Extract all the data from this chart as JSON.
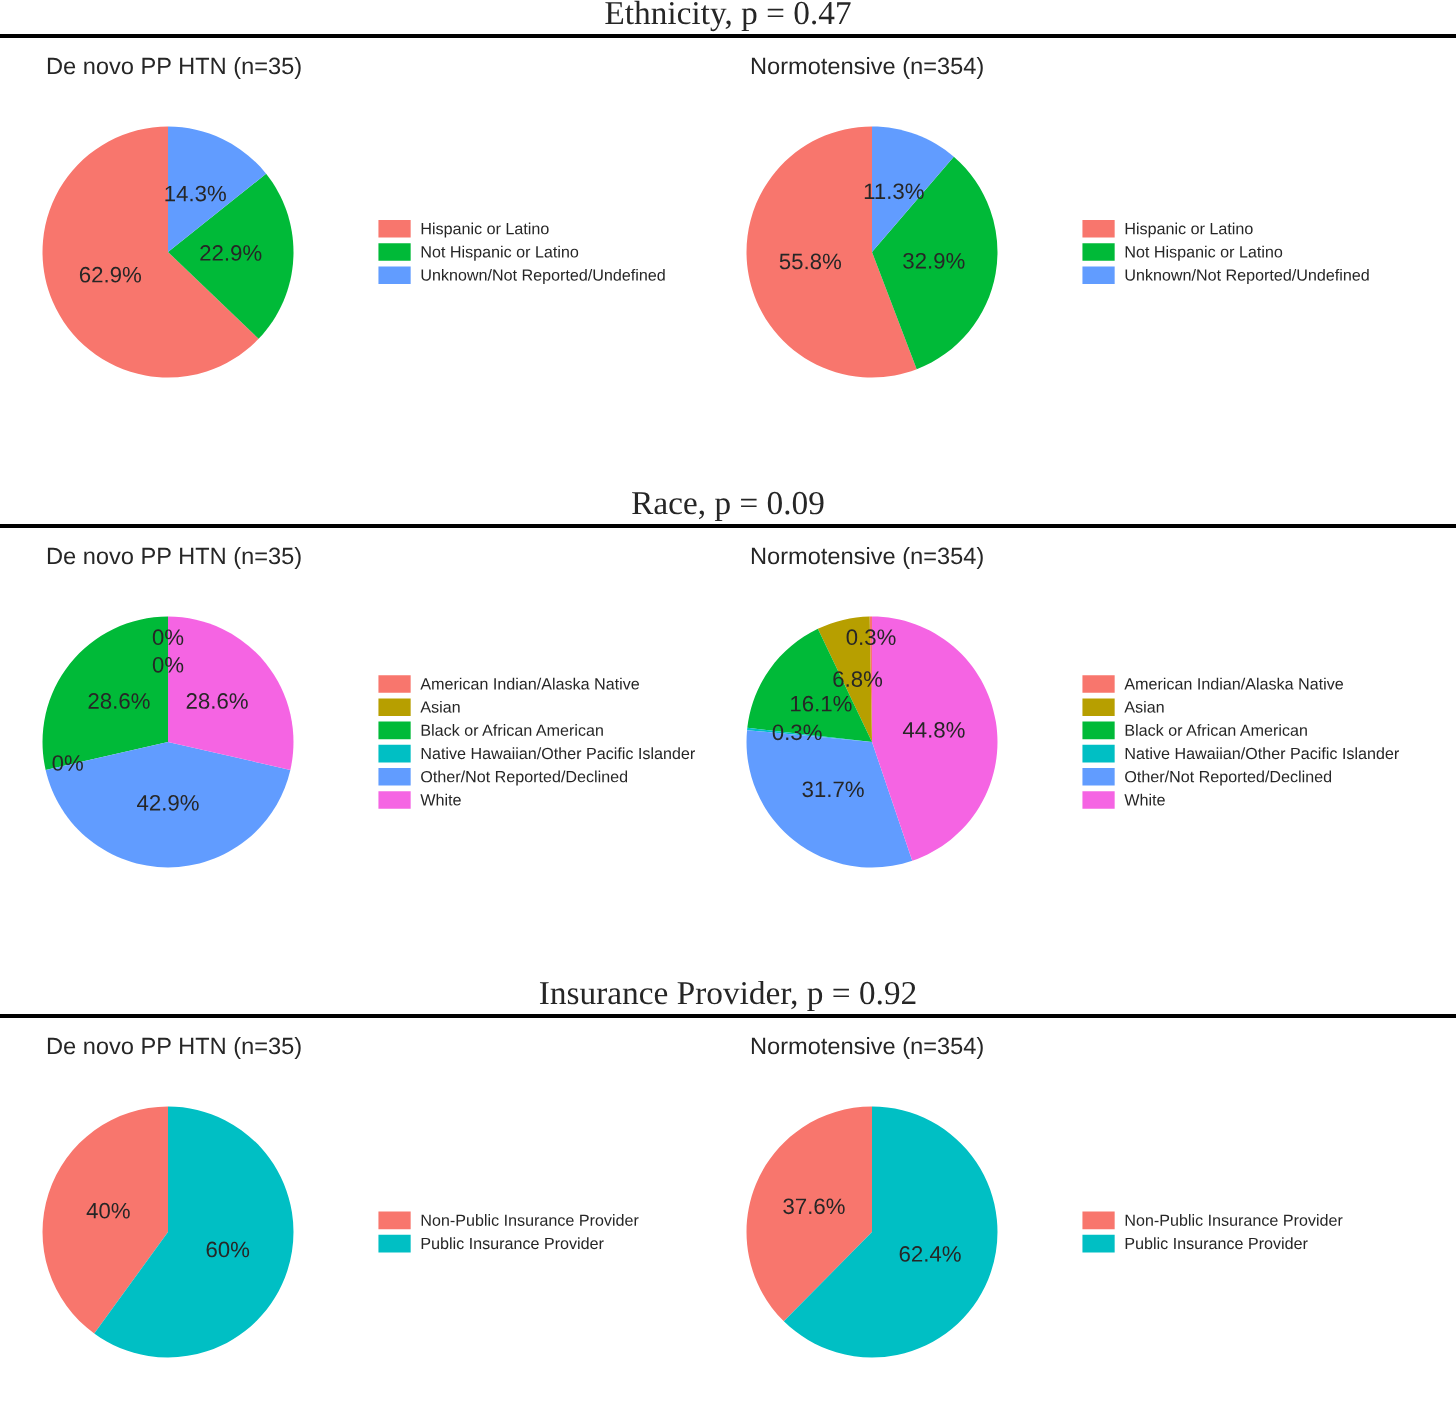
{
  "chart_data": [
    {
      "type": "pie",
      "title": "Ethnicity, p = 0.47",
      "subtitle": "De novo PP HTN (n=35)",
      "categories": [
        "Hispanic or Latino",
        "Not Hispanic or Latino",
        "Unknown/Not Reported/Undefined"
      ],
      "values": [
        62.9,
        22.9,
        14.3
      ],
      "value_labels": [
        "62.9%",
        "22.9%",
        "14.3%"
      ],
      "colors": [
        "#f8766d",
        "#00ba38",
        "#619cff"
      ],
      "legend": "right"
    },
    {
      "type": "pie",
      "subtitle": "Normotensive (n=354)",
      "categories": [
        "Hispanic or Latino",
        "Not Hispanic or Latino",
        "Unknown/Not Reported/Undefined"
      ],
      "values": [
        55.8,
        32.9,
        11.3
      ],
      "value_labels": [
        "55.8%",
        "32.9%",
        "11.3%"
      ],
      "colors": [
        "#f8766d",
        "#00ba38",
        "#619cff"
      ],
      "legend": "right"
    },
    {
      "type": "pie",
      "title": "Race, p = 0.09",
      "subtitle": "De novo PP HTN (n=35)",
      "categories": [
        "American Indian/Alaska Native",
        "Asian",
        "Black or African American",
        "Native Hawaiian/Other Pacific Islander",
        "Other/Not Reported/Declined",
        "White"
      ],
      "values": [
        0,
        0,
        28.6,
        0,
        42.9,
        28.6
      ],
      "value_labels": [
        "0%",
        "0%",
        "28.6%",
        "0%",
        "42.9%",
        "28.6%"
      ],
      "colors": [
        "#f8766d",
        "#b79f00",
        "#00ba38",
        "#00bfc4",
        "#619cff",
        "#f564e3"
      ],
      "legend": "right"
    },
    {
      "type": "pie",
      "subtitle": "Normotensive (n=354)",
      "categories": [
        "American Indian/Alaska Native",
        "Asian",
        "Black or African American",
        "Native Hawaiian/Other Pacific Islander",
        "Other/Not Reported/Declined",
        "White"
      ],
      "values": [
        0.3,
        6.8,
        16.1,
        0.3,
        31.7,
        44.8
      ],
      "value_labels": [
        "0.3%",
        "6.8%",
        "16.1%",
        "0.3%",
        "31.7%",
        "44.8%"
      ],
      "colors": [
        "#f8766d",
        "#b79f00",
        "#00ba38",
        "#00bfc4",
        "#619cff",
        "#f564e3"
      ],
      "legend": "right"
    },
    {
      "type": "pie",
      "title": "Insurance Provider, p = 0.92",
      "subtitle": "De novo PP HTN (n=35)",
      "categories": [
        "Non-Public Insurance Provider",
        "Public Insurance Provider"
      ],
      "values": [
        40,
        60
      ],
      "value_labels": [
        "40%",
        "60%"
      ],
      "colors": [
        "#f8766d",
        "#00bfc4"
      ],
      "legend": "right"
    },
    {
      "type": "pie",
      "subtitle": "Normotensive (n=354)",
      "categories": [
        "Non-Public Insurance Provider",
        "Public Insurance Provider"
      ],
      "values": [
        37.6,
        62.4
      ],
      "value_labels": [
        "37.6%",
        "62.4%"
      ],
      "colors": [
        "#f8766d",
        "#00bfc4"
      ],
      "legend": "right"
    }
  ]
}
